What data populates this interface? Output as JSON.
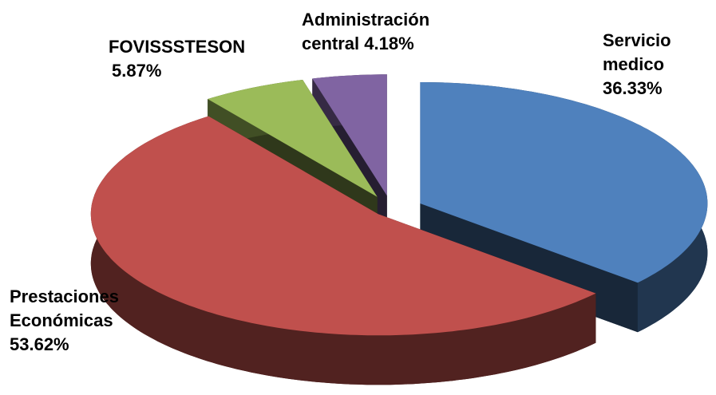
{
  "chart_data": {
    "type": "pie3d",
    "categories": [
      "Servicio medico",
      "Prestaciones Económicas",
      "FOVISSSTESON",
      "Administración central"
    ],
    "values": [
      36.33,
      53.62,
      5.87,
      4.18
    ],
    "value_labels": [
      "36.33%",
      "53.62%",
      "5.87%",
      "4.18%"
    ],
    "colors": [
      "#4f81bd",
      "#c0504d",
      "#9bbb59",
      "#8064a2"
    ]
  }
}
